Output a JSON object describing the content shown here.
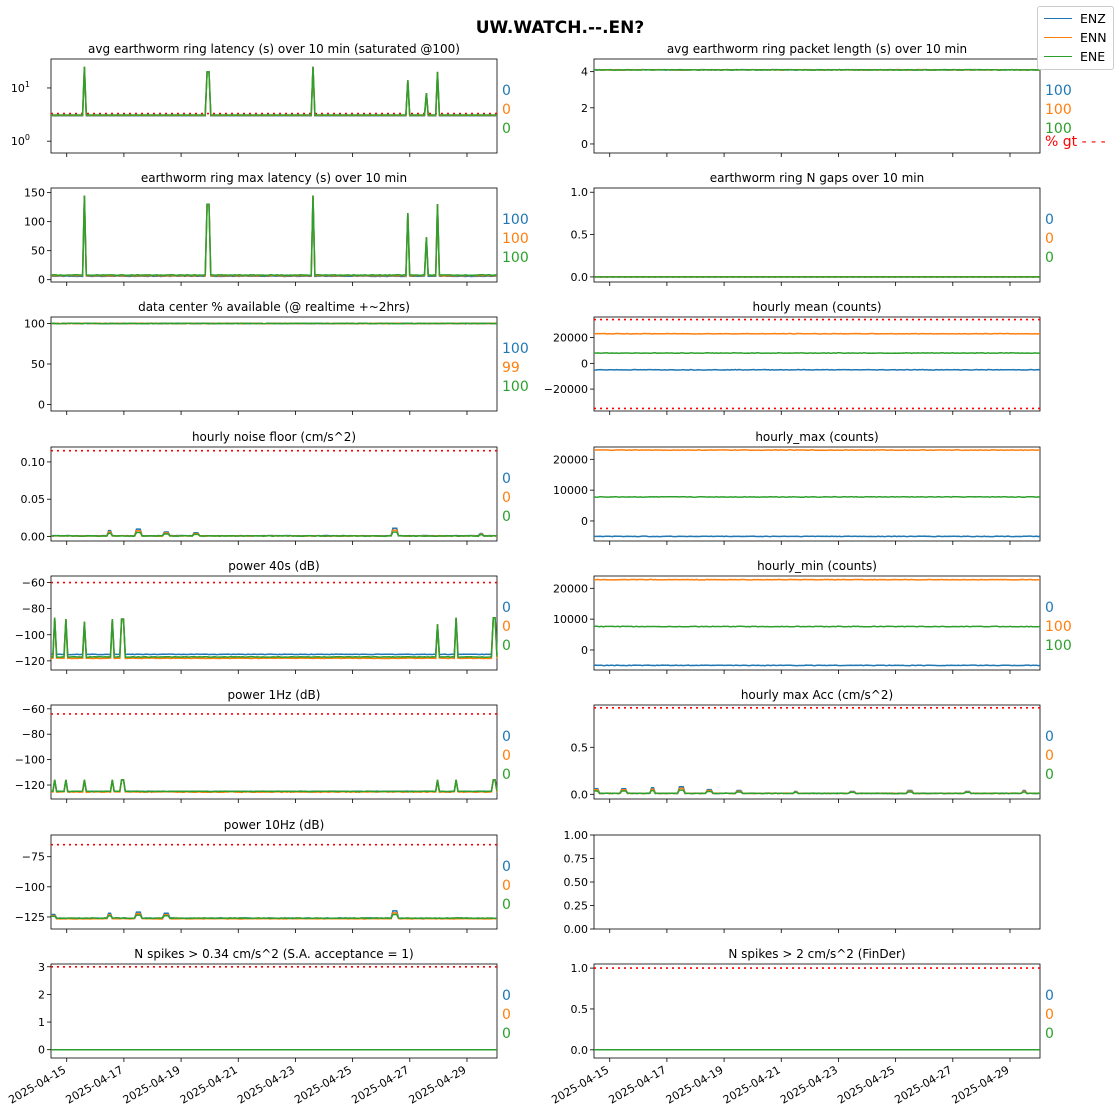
{
  "suptitle": "UW.WATCH.--.EN?",
  "legend": [
    {
      "name": "ENZ",
      "color": "#1f77b4"
    },
    {
      "name": "ENN",
      "color": "#ff7f0e"
    },
    {
      "name": "ENE",
      "color": "#2ca02c"
    }
  ],
  "date_ticks": [
    "2025-04-15",
    "2025-04-17",
    "2025-04-19",
    "2025-04-21",
    "2025-04-23",
    "2025-04-25",
    "2025-04-27",
    "2025-04-29"
  ],
  "chart_data": [
    {
      "type": "line",
      "title": "avg earthworm ring latency (s)   over 10 min (saturated @100)",
      "yscale": "log",
      "ylim": [
        0.6,
        35
      ],
      "ytick_labels": [
        "10^0",
        "10^1"
      ],
      "ytick_values": [
        1,
        10
      ],
      "threshold": 3.3,
      "x_range": [
        "2025-04-14",
        "2025-04-30"
      ],
      "series": [
        {
          "name": "ENZ",
          "baseline": 3.0
        },
        {
          "name": "ENN",
          "baseline": 3.05
        },
        {
          "name": "ENE",
          "baseline": 3.1
        }
      ],
      "spikes": [
        {
          "x": "2025-04-15",
          "y": 25
        },
        {
          "x": "2025-04-19",
          "y": 20
        },
        {
          "x": "2025-04-23",
          "y": 25
        },
        {
          "x": "2025-04-26",
          "y": 14
        },
        {
          "x": "2025-04-27",
          "y": 8
        },
        {
          "x": "2025-04-27",
          "y": 20
        }
      ],
      "percent_labels": [
        "0",
        "0",
        "0"
      ]
    },
    {
      "type": "line",
      "title": "avg earthworm ring packet length (s)   over 10 min",
      "ylim": [
        -0.5,
        4.7
      ],
      "ytick_labels": [
        "0",
        "2",
        "4"
      ],
      "ytick_values": [
        0,
        2,
        4
      ],
      "x_range": [
        "2025-04-14",
        "2025-04-30"
      ],
      "series": [
        {
          "name": "ENZ",
          "baseline": 4.1
        },
        {
          "name": "ENN",
          "baseline": 4.1
        },
        {
          "name": "ENE",
          "baseline": 4.1
        }
      ],
      "percent_labels": [
        "100",
        "100",
        "100"
      ],
      "extra_label": "% gt - - -"
    },
    {
      "type": "line",
      "title": "earthworm ring max latency (s)   over 10 min",
      "ylim": [
        -4,
        158
      ],
      "ytick_labels": [
        "0",
        "50",
        "100",
        "150"
      ],
      "ytick_values": [
        0,
        50,
        100,
        150
      ],
      "x_range": [
        "2025-04-14",
        "2025-04-30"
      ],
      "series": [
        {
          "name": "ENZ",
          "baseline": 6
        },
        {
          "name": "ENN",
          "baseline": 7
        },
        {
          "name": "ENE",
          "baseline": 8
        }
      ],
      "spikes": [
        {
          "x": "2025-04-15",
          "y": 145
        },
        {
          "x": "2025-04-19",
          "y": 130
        },
        {
          "x": "2025-04-23",
          "y": 145
        },
        {
          "x": "2025-04-26",
          "y": 115
        },
        {
          "x": "2025-04-27",
          "y": 73
        },
        {
          "x": "2025-04-27",
          "y": 130
        }
      ],
      "percent_labels": [
        "100",
        "100",
        "100"
      ]
    },
    {
      "type": "line",
      "title": "earthworm ring N gaps   over 10 min",
      "ylim": [
        -0.06,
        1.05
      ],
      "ytick_labels": [
        "0.0",
        "0.5",
        "1.0"
      ],
      "ytick_values": [
        0,
        0.5,
        1.0
      ],
      "threshold": 0,
      "x_range": [
        "2025-04-14",
        "2025-04-30"
      ],
      "series": [
        {
          "name": "ENZ",
          "baseline": 0
        },
        {
          "name": "ENN",
          "baseline": 0
        },
        {
          "name": "ENE",
          "baseline": 0
        }
      ],
      "percent_labels": [
        "0",
        "0",
        "0"
      ]
    },
    {
      "type": "line",
      "title": "data center % available (@ realtime +~2hrs)",
      "ylim": [
        -8,
        108
      ],
      "ytick_labels": [
        "0",
        "50",
        "100"
      ],
      "ytick_values": [
        0,
        50,
        100
      ],
      "threshold": 100,
      "x_range": [
        "2025-04-14",
        "2025-04-30"
      ],
      "series": [
        {
          "name": "ENZ",
          "baseline": 100
        },
        {
          "name": "ENN",
          "baseline": 100
        },
        {
          "name": "ENE",
          "baseline": 100
        }
      ],
      "percent_labels": [
        "100",
        "99",
        "100"
      ]
    },
    {
      "type": "line",
      "title": "hourly mean (counts)",
      "ylim": [
        -37000,
        36000
      ],
      "ytick_labels": [
        "−20000",
        "0",
        "20000"
      ],
      "ytick_values": [
        -20000,
        0,
        20000
      ],
      "threshold": [
        34000,
        -35000
      ],
      "x_range": [
        "2025-04-14",
        "2025-04-30"
      ],
      "series": [
        {
          "name": "ENZ",
          "baseline": -5000
        },
        {
          "name": "ENN",
          "baseline": 23000
        },
        {
          "name": "ENE",
          "baseline": 8000
        }
      ],
      "percent_labels": []
    },
    {
      "type": "line",
      "title": "hourly noise floor (cm/s^2)",
      "ylim": [
        -0.006,
        0.12
      ],
      "ytick_labels": [
        "0.00",
        "0.05",
        "0.10"
      ],
      "ytick_values": [
        0,
        0.05,
        0.1
      ],
      "threshold": 0.115,
      "x_range": [
        "2025-04-14",
        "2025-04-30"
      ],
      "series": [
        {
          "name": "ENZ",
          "baseline": 0.001
        },
        {
          "name": "ENN",
          "baseline": 0.0008
        },
        {
          "name": "ENE",
          "baseline": 0.0008
        }
      ],
      "bumps": [
        {
          "x": "2025-04-16",
          "y": 0.008
        },
        {
          "x": "2025-04-17",
          "y": 0.01
        },
        {
          "x": "2025-04-18",
          "y": 0.006
        },
        {
          "x": "2025-04-19",
          "y": 0.005
        },
        {
          "x": "2025-04-26",
          "y": 0.011
        },
        {
          "x": "2025-04-29",
          "y": 0.004
        }
      ],
      "percent_labels": [
        "0",
        "0",
        "0"
      ]
    },
    {
      "type": "line",
      "title": "hourly_max (counts)",
      "ylim": [
        -6500,
        24000
      ],
      "ytick_labels": [
        "0",
        "10000",
        "20000"
      ],
      "ytick_values": [
        0,
        10000,
        20000
      ],
      "x_range": [
        "2025-04-14",
        "2025-04-30"
      ],
      "series": [
        {
          "name": "ENZ",
          "baseline": -5000
        },
        {
          "name": "ENN",
          "baseline": 23000
        },
        {
          "name": "ENE",
          "baseline": 7800
        }
      ],
      "percent_labels": []
    },
    {
      "type": "line",
      "title": "power 40s (dB)",
      "ylim": [
        -127,
        -55
      ],
      "ytick_labels": [
        "−120",
        "−100",
        "−80",
        "−60"
      ],
      "ytick_values": [
        -120,
        -100,
        -80,
        -60
      ],
      "threshold": -60,
      "x_range": [
        "2025-04-14",
        "2025-04-30"
      ],
      "series": [
        {
          "name": "ENZ",
          "baseline": -115
        },
        {
          "name": "ENN",
          "baseline": -118
        },
        {
          "name": "ENE",
          "baseline": -117
        }
      ],
      "spikes": [
        {
          "x": "2025-04-14",
          "y": -87
        },
        {
          "x": "2025-04-14",
          "y": -88
        },
        {
          "x": "2025-04-15",
          "y": -90
        },
        {
          "x": "2025-04-16",
          "y": -88
        },
        {
          "x": "2025-04-16",
          "y": -88
        },
        {
          "x": "2025-04-27",
          "y": -92
        },
        {
          "x": "2025-04-28",
          "y": -87
        },
        {
          "x": "2025-04-29",
          "y": -87
        }
      ],
      "percent_labels": [
        "0",
        "0",
        "0"
      ]
    },
    {
      "type": "line",
      "title": "hourly_min (counts)",
      "ylim": [
        -6500,
        24000
      ],
      "ytick_labels": [
        "0",
        "10000",
        "20000"
      ],
      "ytick_values": [
        0,
        10000,
        20000
      ],
      "x_range": [
        "2025-04-14",
        "2025-04-30"
      ],
      "series": [
        {
          "name": "ENZ",
          "baseline": -5000
        },
        {
          "name": "ENN",
          "baseline": 22800
        },
        {
          "name": "ENE",
          "baseline": 7600
        }
      ],
      "percent_labels": [
        "0",
        "100",
        "100"
      ]
    },
    {
      "type": "line",
      "title": "power 1Hz (dB)",
      "ylim": [
        -131,
        -57
      ],
      "ytick_labels": [
        "−120",
        "−100",
        "−80",
        "−60"
      ],
      "ytick_values": [
        -120,
        -100,
        -80,
        -60
      ],
      "threshold": -64,
      "x_range": [
        "2025-04-14",
        "2025-04-30"
      ],
      "series": [
        {
          "name": "ENZ",
          "baseline": -125
        },
        {
          "name": "ENN",
          "baseline": -125.5
        },
        {
          "name": "ENE",
          "baseline": -125
        }
      ],
      "spikes": [
        {
          "x": "2025-04-14",
          "y": -116
        },
        {
          "x": "2025-04-14",
          "y": -116
        },
        {
          "x": "2025-04-15",
          "y": -116
        },
        {
          "x": "2025-04-16",
          "y": -116
        },
        {
          "x": "2025-04-16",
          "y": -116
        },
        {
          "x": "2025-04-27",
          "y": -116
        },
        {
          "x": "2025-04-28",
          "y": -116
        },
        {
          "x": "2025-04-29",
          "y": -116
        }
      ],
      "percent_labels": [
        "0",
        "0",
        "0"
      ]
    },
    {
      "type": "line",
      "title": "hourly max Acc (cm/s^2)",
      "ylim": [
        -0.05,
        0.95
      ],
      "ytick_labels": [
        "0.0",
        "0.5"
      ],
      "ytick_values": [
        0,
        0.5
      ],
      "threshold": 0.92,
      "x_range": [
        "2025-04-14",
        "2025-04-30"
      ],
      "series": [
        {
          "name": "ENZ",
          "baseline": 0.01
        },
        {
          "name": "ENN",
          "baseline": 0.01
        },
        {
          "name": "ENE",
          "baseline": 0.01
        }
      ],
      "bumps": [
        {
          "x": "2025-04-14",
          "y": 0.06
        },
        {
          "x": "2025-04-15",
          "y": 0.06
        },
        {
          "x": "2025-04-16",
          "y": 0.07
        },
        {
          "x": "2025-04-17",
          "y": 0.08
        },
        {
          "x": "2025-04-18",
          "y": 0.05
        },
        {
          "x": "2025-04-19",
          "y": 0.04
        },
        {
          "x": "2025-04-21",
          "y": 0.03
        },
        {
          "x": "2025-04-23",
          "y": 0.03
        },
        {
          "x": "2025-04-25",
          "y": 0.04
        },
        {
          "x": "2025-04-27",
          "y": 0.03
        },
        {
          "x": "2025-04-29",
          "y": 0.04
        }
      ],
      "percent_labels": [
        "0",
        "0",
        "0"
      ]
    },
    {
      "type": "line",
      "title": "power 10Hz (dB)",
      "ylim": [
        -135,
        -57
      ],
      "ytick_labels": [
        "−125",
        "−100",
        "−75"
      ],
      "ytick_values": [
        -125,
        -100,
        -75
      ],
      "threshold": -65,
      "x_range": [
        "2025-04-14",
        "2025-04-30"
      ],
      "series": [
        {
          "name": "ENZ",
          "baseline": -126
        },
        {
          "name": "ENN",
          "baseline": -126.5
        },
        {
          "name": "ENE",
          "baseline": -126
        }
      ],
      "bumps": [
        {
          "x": "2025-04-14",
          "y": -123
        },
        {
          "x": "2025-04-16",
          "y": -122
        },
        {
          "x": "2025-04-17",
          "y": -121
        },
        {
          "x": "2025-04-18",
          "y": -122
        },
        {
          "x": "2025-04-26",
          "y": -120
        }
      ],
      "percent_labels": [
        "0",
        "0",
        "0"
      ]
    },
    {
      "type": "line",
      "title": "",
      "ylim": [
        0,
        1
      ],
      "ytick_labels": [
        "0.00",
        "0.25",
        "0.50",
        "0.75",
        "1.00"
      ],
      "ytick_values": [
        0,
        0.25,
        0.5,
        0.75,
        1.0
      ],
      "x_range": [
        "2025-04-14",
        "2025-04-30"
      ],
      "series": [],
      "percent_labels": []
    },
    {
      "type": "line",
      "title": "N spikes > 0.34 cm/s^2 (S.A. acceptance = 1)",
      "ylim": [
        -0.3,
        3.1
      ],
      "ytick_labels": [
        "0",
        "1",
        "2",
        "3"
      ],
      "ytick_values": [
        0,
        1,
        2,
        3
      ],
      "threshold": 3,
      "x_range": [
        "2025-04-14",
        "2025-04-30"
      ],
      "series": [
        {
          "name": "ENZ",
          "baseline": 0
        },
        {
          "name": "ENN",
          "baseline": 0
        },
        {
          "name": "ENE",
          "baseline": 0
        }
      ],
      "percent_labels": [
        "0",
        "0",
        "0"
      ]
    },
    {
      "type": "line",
      "title": "N spikes > 2 cm/s^2 (FinDer)",
      "ylim": [
        -0.1,
        1.05
      ],
      "ytick_labels": [
        "0.0",
        "0.5",
        "1.0"
      ],
      "ytick_values": [
        0,
        0.5,
        1.0
      ],
      "threshold": 1,
      "x_range": [
        "2025-04-14",
        "2025-04-30"
      ],
      "series": [
        {
          "name": "ENZ",
          "baseline": 0
        },
        {
          "name": "ENN",
          "baseline": 0
        },
        {
          "name": "ENE",
          "baseline": 0
        }
      ],
      "percent_labels": [
        "0",
        "0",
        "0"
      ]
    }
  ]
}
